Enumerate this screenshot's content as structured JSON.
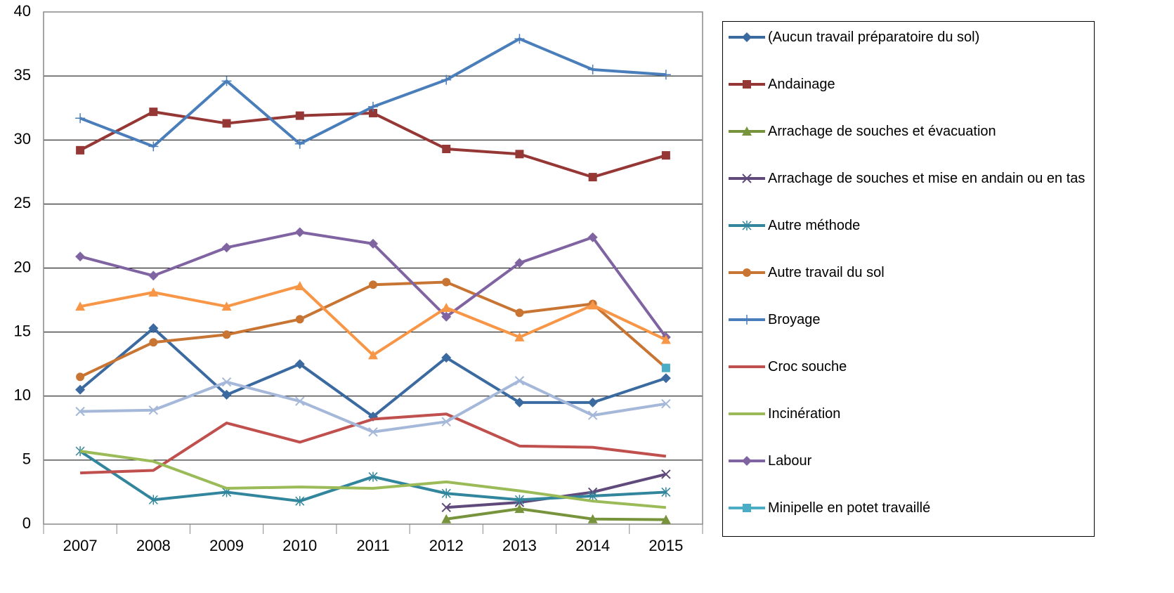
{
  "chart_data": {
    "type": "line",
    "categories": [
      "2007",
      "2008",
      "2009",
      "2010",
      "2011",
      "2012",
      "2013",
      "2014",
      "2015"
    ],
    "ylim": [
      0,
      40
    ],
    "yticks": [
      0,
      5,
      10,
      15,
      20,
      25,
      30,
      35,
      40
    ],
    "grid": true,
    "legend": "right",
    "series": [
      {
        "name": "(Aucun travail préparatoire du sol)",
        "color": "#3a6aa0",
        "marker": "diamond",
        "values": [
          10.5,
          15.3,
          10.1,
          12.5,
          8.4,
          13.0,
          9.5,
          9.5,
          11.4
        ]
      },
      {
        "name": "Andainage",
        "color": "#953735",
        "marker": "square",
        "values": [
          29.2,
          32.2,
          31.3,
          31.9,
          32.1,
          29.3,
          28.9,
          27.1,
          28.8
        ]
      },
      {
        "name": "Arrachage de souches et évacuation",
        "color": "#77933c",
        "marker": "triangle",
        "values": [
          null,
          null,
          null,
          null,
          null,
          0.4,
          1.2,
          0.4,
          0.35
        ]
      },
      {
        "name": "Arrachage de souches et mise en andain ou en tas",
        "color": "#604a7b",
        "marker": "x",
        "values": [
          null,
          null,
          null,
          null,
          null,
          1.3,
          1.7,
          2.5,
          3.9
        ]
      },
      {
        "name": "Autre méthode",
        "color": "#31859c",
        "marker": "star",
        "values": [
          5.7,
          1.9,
          2.5,
          1.8,
          3.7,
          2.4,
          1.9,
          2.2,
          2.5
        ]
      },
      {
        "name": "Autre travail du sol",
        "color": "#c87533",
        "marker": "circle",
        "values": [
          11.5,
          14.2,
          14.8,
          16.0,
          18.7,
          18.9,
          16.5,
          17.2,
          12.2
        ]
      },
      {
        "name": "Broyage",
        "color": "#4a7ebb",
        "marker": "plus",
        "values": [
          31.7,
          29.5,
          34.6,
          29.7,
          32.6,
          34.7,
          37.9,
          35.5,
          35.1
        ]
      },
      {
        "name": "Croc souche",
        "color": "#c0504d",
        "marker": "none",
        "values": [
          4.0,
          4.2,
          7.9,
          6.4,
          8.2,
          8.6,
          6.1,
          6.0,
          5.3
        ]
      },
      {
        "name": "Incinération",
        "color": "#9bbb59",
        "marker": "none",
        "values": [
          5.7,
          4.9,
          2.8,
          2.9,
          2.8,
          3.3,
          2.6,
          1.8,
          1.3
        ]
      },
      {
        "name": "Labour",
        "color": "#8064a2",
        "marker": "diamond",
        "values": [
          20.9,
          19.4,
          21.6,
          22.8,
          21.9,
          16.2,
          20.4,
          22.4,
          14.6
        ]
      },
      {
        "name": "Minipelle en potet travaillé",
        "color": "#4bacc6",
        "marker": "square",
        "values": [
          null,
          null,
          null,
          null,
          null,
          null,
          null,
          null,
          12.2
        ]
      },
      {
        "color": "#f79646",
        "marker": "triangle",
        "values": [
          17.0,
          18.1,
          17.0,
          18.6,
          13.2,
          16.9,
          14.6,
          17.1,
          14.4
        ]
      },
      {
        "color": "#a5b8d9",
        "marker": "x",
        "values": [
          8.8,
          8.9,
          11.1,
          9.6,
          7.2,
          8.0,
          11.2,
          8.5,
          9.4
        ]
      }
    ]
  }
}
